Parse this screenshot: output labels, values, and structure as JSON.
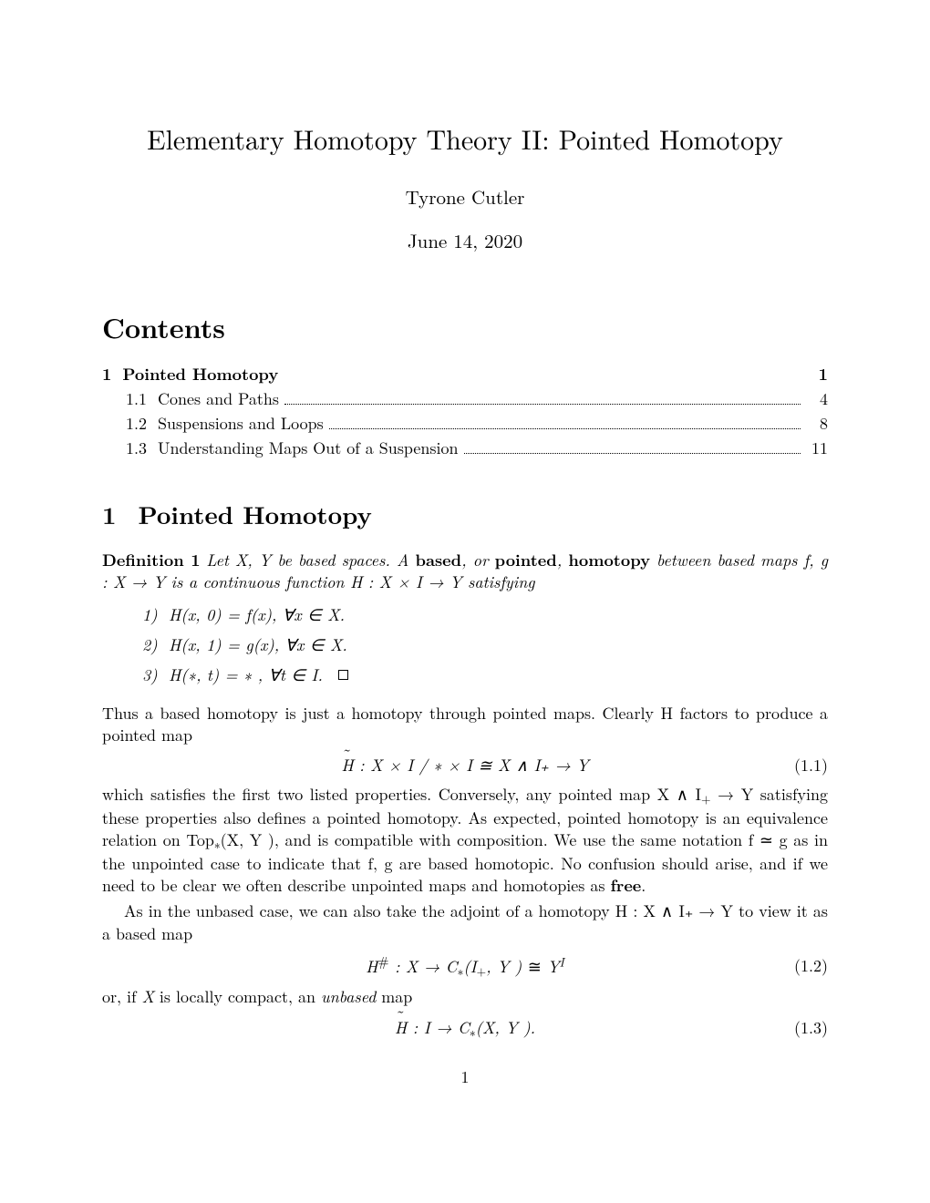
{
  "title": "Elementary Homotopy Theory II: Pointed Homotopy",
  "author": "Tyrone Cutler",
  "date": "June 14, 2020",
  "contents_heading": "Contents",
  "toc": {
    "section": {
      "num": "1",
      "label": "Pointed Homotopy",
      "page": "1"
    },
    "subs": [
      {
        "num": "1.1",
        "label": "Cones and Paths",
        "page": "4"
      },
      {
        "num": "1.2",
        "label": "Suspensions and Loops",
        "page": "8"
      },
      {
        "num": "1.3",
        "label": "Understanding Maps Out of a Suspension",
        "page": "11"
      }
    ]
  },
  "section": {
    "num": "1",
    "heading": "Pointed Homotopy"
  },
  "definition": {
    "label": "Definition 1",
    "text_pre": "Let X, Y be based spaces.  A ",
    "bold1": "based",
    "mid1": ", or ",
    "bold2": "pointed",
    "mid2": ", ",
    "bold3": "homotopy",
    "text_post": " between based maps f, g : X → Y is a continuous function H : X × I → Y satisfying"
  },
  "items": [
    {
      "num": "1)",
      "text": "H(x, 0) = f(x), ∀x ∈ X."
    },
    {
      "num": "2)",
      "text": "H(x, 1) = g(x), ∀x ∈ X."
    },
    {
      "num": "3)",
      "text": "H(∗, t) = ∗ , ∀t ∈ I."
    }
  ],
  "para1": "Thus a based homotopy is just a homotopy through pointed maps.  Clearly H factors to produce a pointed map",
  "eq1": {
    "lhs": "H",
    "body": " : X × I / ∗ × I ≅ X ∧ I₊ → Y",
    "tag": "(1.1)"
  },
  "para2_a": "which satisfies the first two listed properties.  Conversely, any pointed map X ∧ I",
  "para2_b": " → Y satisfying these properties also defines a pointed homotopy. As expected, pointed homotopy is an equivalence relation on Top",
  "para2_c": "(X, Y ), and is compatible with composition.  We use the same notation f ≃ g as in the unpointed case to indicate that f, g are based homotopic. No confusion should arise, and if we need to be clear we often describe unpointed maps and homotopies as ",
  "para2_free": "free",
  "para2_d": ".",
  "para3": "As in the unbased case, we can also take the adjoint of a homotopy H : X ∧ I₊ → Y to view it as a based map",
  "eq2": {
    "body": "H# : X → C∗(I₊, Y ) ≅ Y",
    "sup": "I",
    "tag": "(1.2)"
  },
  "para4": "or, if X is locally compact, an unbased map",
  "eq3": {
    "lhs": "H",
    "body": " : I → C∗(X, Y ).",
    "tag": "(1.3)"
  },
  "pagenum": "1"
}
